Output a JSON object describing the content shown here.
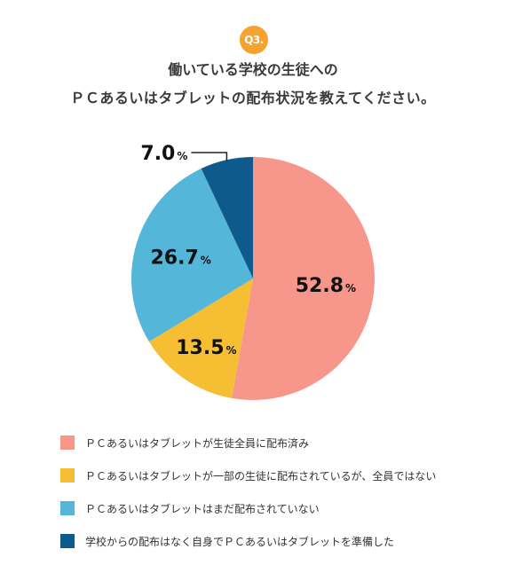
{
  "question_badge": "Q3.",
  "title_line1": "働いている学校の生徒への",
  "title_line2": "ＰＣあるいはタブレットの配布状況を教えてください。",
  "colors": {
    "badge": "#F7A12E",
    "slices": [
      "#F7968A",
      "#F6BE32",
      "#54B6D8",
      "#0E5A8C"
    ]
  },
  "chart_data": {
    "type": "pie",
    "unit": "%",
    "slices": [
      {
        "label": "ＰＣあるいはタブレットが生徒全員に配布済み",
        "value": 52.8,
        "display": "52.8"
      },
      {
        "label": "ＰＣあるいはタブレットが一部の生徒に配布されているが、全員ではない",
        "value": 13.5,
        "display": "13.5"
      },
      {
        "label": "ＰＣあるいはタブレットはまだ配布されていない",
        "value": 26.7,
        "display": "26.7"
      },
      {
        "label": "学校からの配布はなく自身でＰＣあるいはタブレットを準備した",
        "value": 7.0,
        "display": "7.0"
      }
    ],
    "legend_position": "bottom"
  }
}
